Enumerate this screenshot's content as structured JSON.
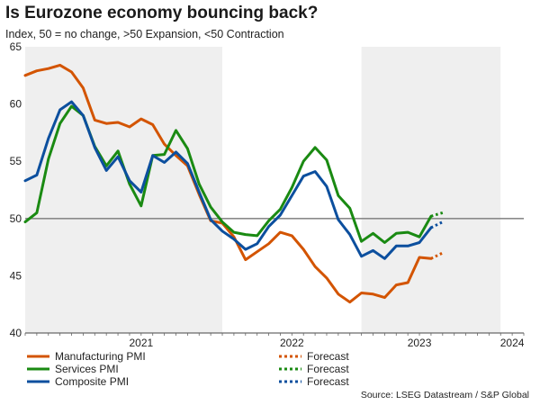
{
  "chart_data": {
    "type": "line",
    "title": "Is Eurozone economy bouncing back?",
    "subtitle": "Index, 50 = no change, >50 Expansion, <50 Contraction",
    "source": "Source: LSEG Datastream / S&P Global",
    "ylim": [
      40,
      65
    ],
    "yticks": [
      40,
      45,
      50,
      55,
      60,
      65
    ],
    "reference_line": 50,
    "x_range": [
      "2020-08",
      "2024-03"
    ],
    "x_tick_labels": [
      {
        "label": "2021",
        "at": "2021-06"
      },
      {
        "label": "2022",
        "at": "2022-07"
      },
      {
        "label": "2023",
        "at": "2023-06"
      },
      {
        "label": "2024",
        "at": "2024-02"
      }
    ],
    "shaded_years": [
      {
        "from": "2020-08",
        "to": "2021-12"
      },
      {
        "from": "2023-01",
        "to": "2023-12"
      }
    ],
    "series": [
      {
        "name": "Manufacturing PMI",
        "color": "#d35400",
        "start": "2020-08",
        "values": [
          62.5,
          62.9,
          63.1,
          63.4,
          62.8,
          61.4,
          58.6,
          58.3,
          58.4,
          58.0,
          58.7,
          58.2,
          56.5,
          55.5,
          54.6,
          52.1,
          49.8,
          49.6,
          48.4,
          46.4,
          47.1,
          47.8,
          48.8,
          48.5,
          47.3,
          45.8,
          44.8,
          43.4,
          42.7,
          43.5,
          43.4,
          43.1,
          44.2,
          44.4,
          46.6,
          46.5
        ],
        "forecast_values": [
          46.5,
          47.0
        ],
        "forecast_label": "Forecast"
      },
      {
        "name": "Services PMI",
        "color": "#1a8a12",
        "start": "2020-08",
        "values": [
          49.7,
          50.5,
          55.2,
          58.3,
          59.8,
          59.0,
          56.3,
          54.6,
          55.9,
          53.0,
          51.1,
          55.5,
          55.6,
          57.7,
          56.1,
          53.0,
          51.0,
          49.7,
          48.8,
          48.6,
          48.5,
          49.8,
          50.8,
          52.7,
          55.0,
          56.2,
          55.1,
          52.0,
          50.9,
          48.0,
          48.7,
          47.9,
          48.7,
          48.8,
          48.4,
          50.2
        ],
        "forecast_values": [
          50.2,
          50.5
        ],
        "forecast_label": "Forecast"
      },
      {
        "name": "Composite PMI",
        "color": "#0c4f9e",
        "start": "2020-08",
        "values": [
          53.3,
          53.8,
          57.0,
          59.5,
          60.2,
          59.0,
          56.2,
          54.2,
          55.4,
          53.3,
          52.3,
          55.5,
          54.9,
          55.8,
          54.8,
          52.3,
          49.9,
          48.9,
          48.2,
          47.3,
          47.8,
          49.3,
          50.3,
          52.0,
          53.7,
          54.1,
          52.8,
          49.9,
          48.6,
          46.7,
          47.2,
          46.5,
          47.6,
          47.6,
          47.9,
          49.2
        ],
        "forecast_values": [
          49.2,
          49.7
        ],
        "forecast_label": "Forecast"
      }
    ]
  }
}
